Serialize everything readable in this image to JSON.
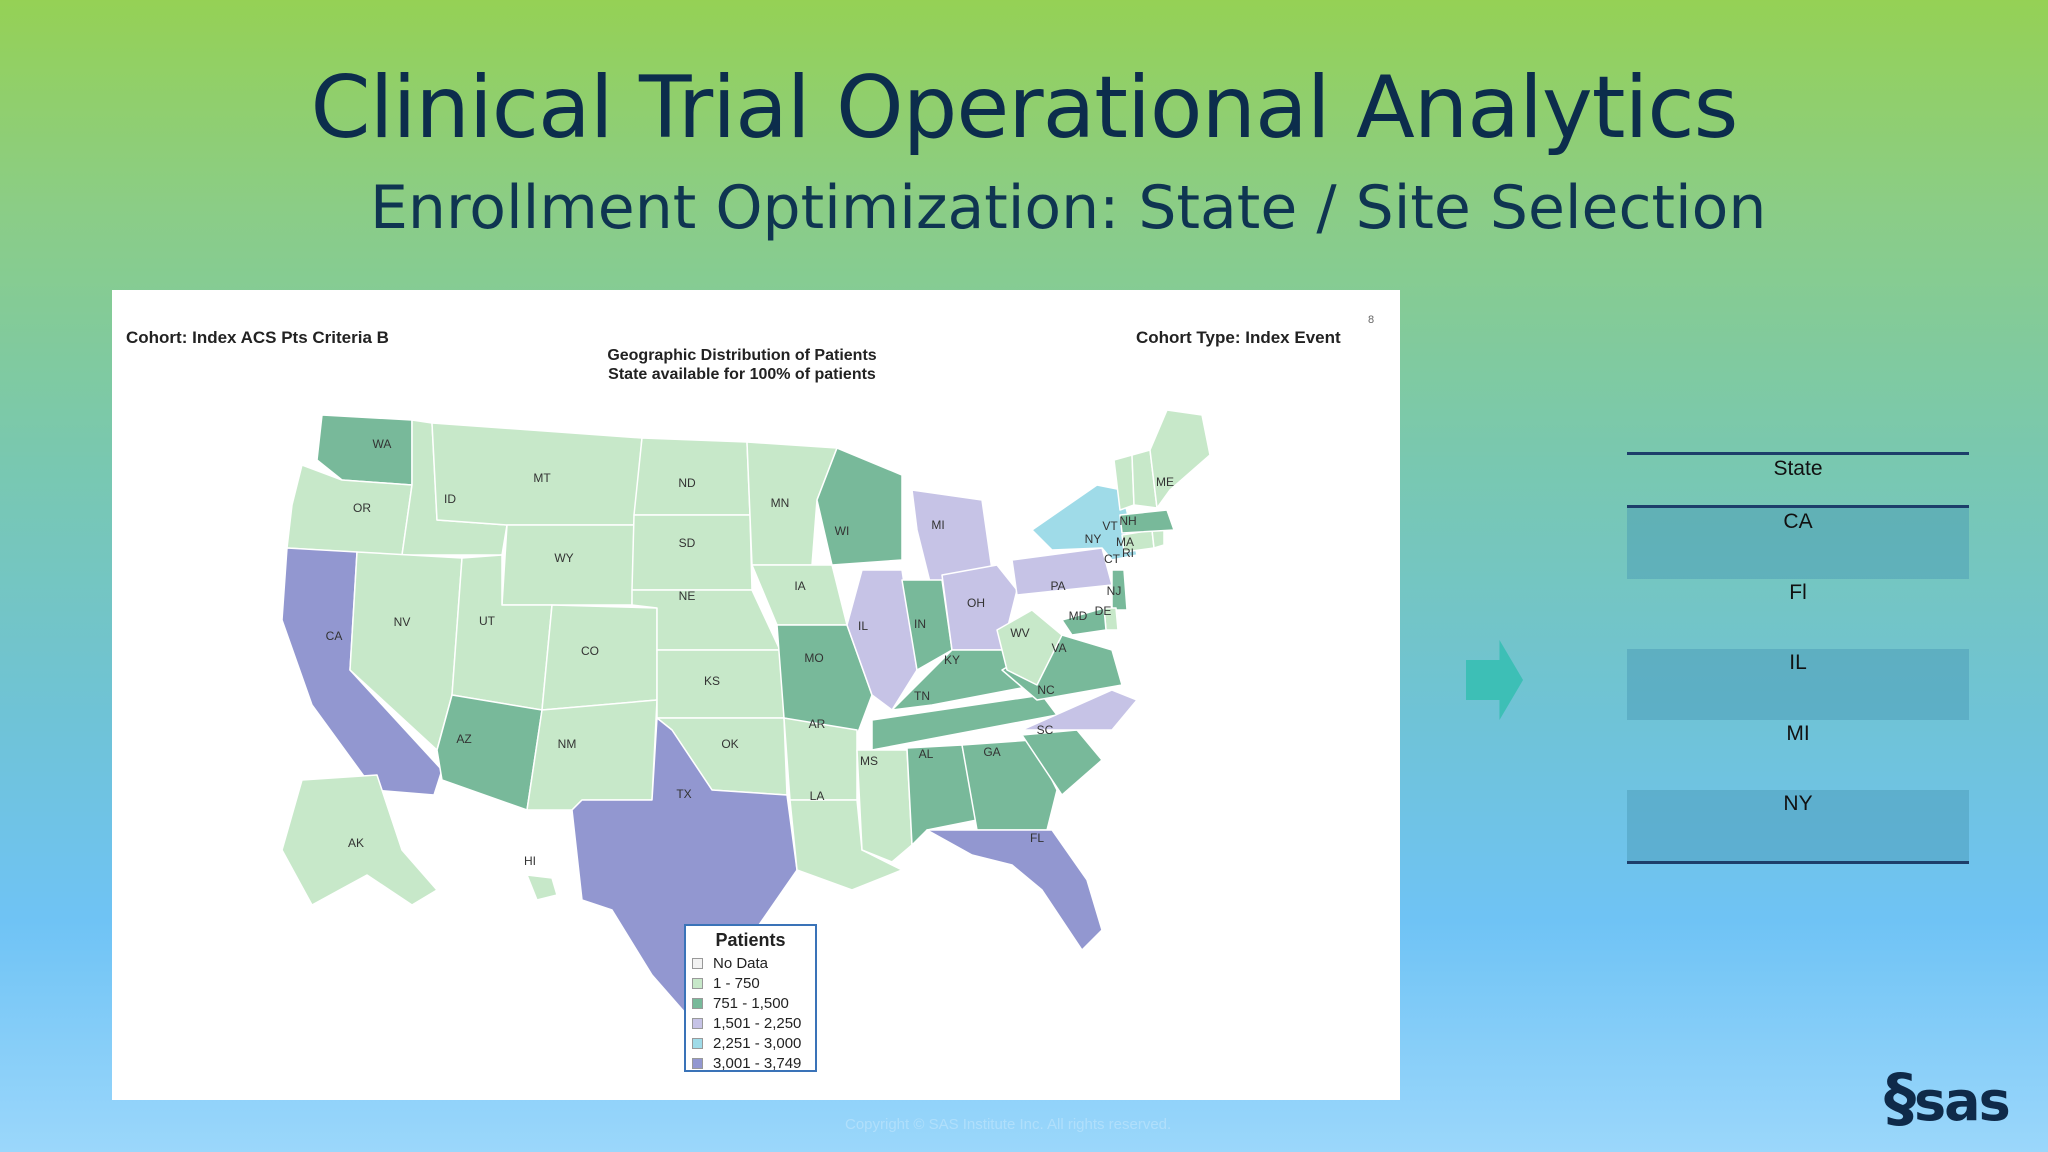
{
  "slide": {
    "title": "Clinical Trial Operational Analytics",
    "subtitle": "Enrollment Optimization: State / Site Selection",
    "logo": "sas",
    "footer": "Copyright © SAS Institute Inc. All rights reserved."
  },
  "map_panel": {
    "cohort": "Cohort: Index ACS Pts Criteria B",
    "cohort_type": "Cohort Type: Index Event",
    "page_number": "8",
    "title_line1": "Geographic Distribution of Patients",
    "title_line2": "State available for  100%  of patients",
    "legend": {
      "title": "Patients",
      "items": [
        {
          "label": "No Data",
          "color": "#f2f2f2"
        },
        {
          "label": "1 - 750",
          "color": "#c7e8c9"
        },
        {
          "label": "751 - 1,500",
          "color": "#78b99a"
        },
        {
          "label": "1,501 - 2,250",
          "color": "#c6c3e6"
        },
        {
          "label": "2,251 - 3,000",
          "color": "#9fdbe8"
        },
        {
          "label": "3,001 - 3,749",
          "color": "#9297d0"
        }
      ]
    },
    "states": {
      "WA": 2,
      "OR": 1,
      "CA": 5,
      "ID": 1,
      "NV": 1,
      "MT": 1,
      "WY": 1,
      "UT": 1,
      "AZ": 2,
      "CO": 1,
      "NM": 1,
      "ND": 1,
      "SD": 1,
      "NE": 1,
      "KS": 1,
      "OK": 1,
      "TX": 5,
      "MN": 1,
      "IA": 1,
      "MO": 2,
      "AR": 1,
      "LA": 1,
      "WI": 2,
      "IL": 3,
      "MI": 3,
      "IN": 2,
      "OH": 3,
      "KY": 2,
      "TN": 2,
      "MS": 1,
      "AL": 2,
      "GA": 2,
      "FL": 5,
      "SC": 2,
      "NC": 3,
      "VA": 2,
      "WV": 1,
      "PA": 3,
      "NY": 4,
      "NJ": 2,
      "DE": 1,
      "MD": 2,
      "CT": 1,
      "RI": 1,
      "MA": 2,
      "VT": 1,
      "NH": 1,
      "ME": 1,
      "AK": 1,
      "HI": 1
    }
  },
  "selection_table": {
    "header": "State",
    "rows": [
      "CA",
      "Fl",
      "IL",
      "MI",
      "NY"
    ]
  }
}
